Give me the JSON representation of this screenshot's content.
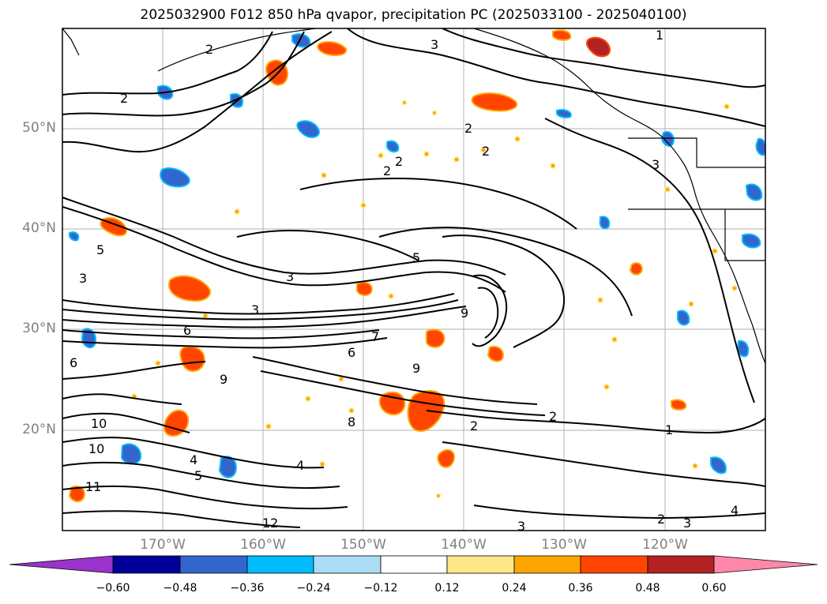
{
  "title": "2025032900 F012 850 hPa qvapor, precipitation PC (2025033100 - 2025040100)",
  "map": {
    "latitude_labels": [
      "50°N",
      "40°N",
      "30°N",
      "20°N"
    ],
    "longitude_labels": [
      "170°W",
      "160°W",
      "150°W",
      "140°W",
      "130°W",
      "120°W"
    ],
    "extent": {
      "lon_min": -180,
      "lon_max": -110,
      "lat_min": 10,
      "lat_max": 60
    },
    "gridlines": true,
    "contour_labels": [
      "1",
      "2",
      "2",
      "2",
      "2",
      "2",
      "2",
      "2",
      "3",
      "3",
      "3",
      "3",
      "3",
      "3",
      "4",
      "4",
      "5",
      "5",
      "5",
      "6",
      "6",
      "7",
      "8",
      "9",
      "9",
      "9",
      "10",
      "10",
      "11",
      "12",
      "2",
      "1",
      "2",
      "3",
      "4",
      "6"
    ]
  },
  "colorbar": {
    "ticks": [
      "−0.60",
      "−0.48",
      "−0.36",
      "−0.24",
      "−0.12",
      "0.12",
      "0.24",
      "0.36",
      "0.48",
      "0.60"
    ],
    "colors": [
      "#9933cc",
      "#000099",
      "#3366cc",
      "#00bbff",
      "#aaddf5",
      "#ffffff",
      "#ffe88a",
      "#ffa500",
      "#ff4500",
      "#b22222",
      "#ff88aa"
    ],
    "extend": "both"
  }
}
